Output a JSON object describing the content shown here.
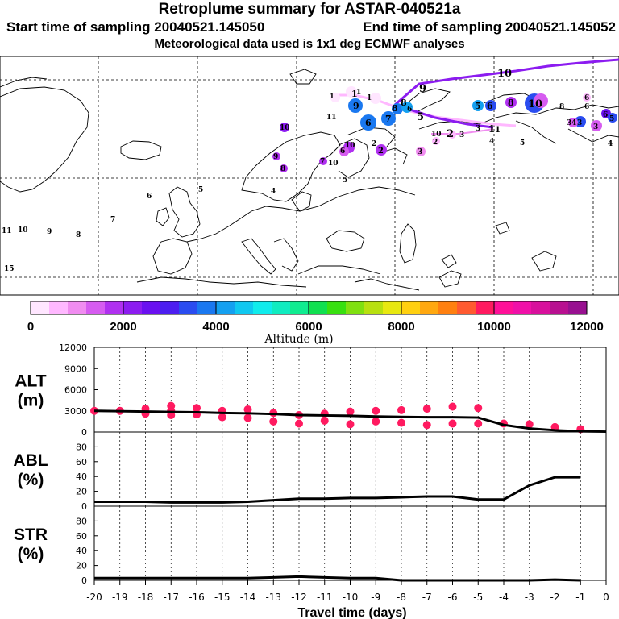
{
  "header": {
    "title": "Retroplume summary for ASTAR-040521a",
    "start_time": "Start time of sampling 20040521.145050",
    "end_time": "End time of sampling 20040521.145052",
    "met_data": "Meteorological data used is 1x1 deg ECMWF analyses"
  },
  "colorbar": {
    "label": "Altitude (m)",
    "tick_labels": [
      "0",
      "2000",
      "4000",
      "6000",
      "8000",
      "10000",
      "12000"
    ],
    "range": [
      0,
      12000
    ],
    "colors": [
      "#ffe6ff",
      "#ffb8ff",
      "#f08cf0",
      "#d65cf0",
      "#b030f0",
      "#8c1cf0",
      "#6a10f0",
      "#4c1ef0",
      "#2a4cf0",
      "#1a78f0",
      "#14a0f0",
      "#10c8f0",
      "#10ecec",
      "#10ecc0",
      "#10ec90",
      "#10e050",
      "#38e010",
      "#80e010",
      "#b8e010",
      "#e8e810",
      "#ffd010",
      "#ffa810",
      "#ff8010",
      "#ff5a30",
      "#ff1a60",
      "#ff1098",
      "#f010a8",
      "#d8109c",
      "#b81090",
      "#981090"
    ]
  },
  "map": {
    "track_labels": [
      "1",
      "1",
      "1",
      "1",
      "9",
      "8",
      "6",
      "5",
      "8",
      "7",
      "5",
      "6",
      "9",
      "10",
      "6",
      "3",
      "4",
      "3",
      "5",
      "2",
      "2",
      "6",
      "10",
      "7",
      "9",
      "9",
      "2",
      "3",
      "2",
      "3",
      "8",
      "9",
      "10",
      "11",
      "1",
      "5",
      "10",
      "6",
      "4",
      "4",
      "10",
      "7",
      "8",
      "6",
      "5",
      "11",
      "10",
      "9",
      "8",
      "15",
      "7",
      "6",
      "5",
      "4",
      "3",
      "2"
    ],
    "point_labels": [
      "1",
      "1",
      "9",
      "6",
      "7",
      "8",
      "5",
      "9",
      "10",
      "6",
      "8",
      "6",
      "3",
      "4",
      "5",
      "2",
      "2",
      "2",
      "3",
      "2",
      "6",
      "10",
      "7",
      "9",
      "9",
      "10",
      "11",
      "6",
      "5",
      "4",
      "7",
      "6",
      "11",
      "10",
      "9",
      "8",
      "15"
    ]
  },
  "chart_data": [
    {
      "type": "scatter",
      "name": "ALT",
      "ylabel": "ALT\n(m)",
      "ylabel_lines": [
        "ALT",
        "(m)"
      ],
      "ylim": [
        0,
        12000
      ],
      "yticks": [
        0,
        3000,
        6000,
        9000,
        12000
      ],
      "xlim": [
        -20,
        0
      ],
      "median_line": {
        "x": [
          -20,
          -19,
          -18,
          -17,
          -16,
          -15,
          -14,
          -13,
          -12,
          -11,
          -10,
          -9,
          -8,
          -7,
          -6,
          -5,
          -4,
          -3,
          -2,
          -1,
          0
        ],
        "y": [
          3000,
          2950,
          2900,
          2850,
          2800,
          2700,
          2650,
          2550,
          2400,
          2350,
          2300,
          2200,
          2150,
          2100,
          2100,
          2050,
          1000,
          500,
          250,
          100,
          50
        ]
      },
      "points": [
        {
          "x": -20,
          "y": 3000
        },
        {
          "x": -19,
          "y": 3000
        },
        {
          "x": -18,
          "y": 3300
        },
        {
          "x": -18,
          "y": 2600
        },
        {
          "x": -17,
          "y": 3700
        },
        {
          "x": -17,
          "y": 3000
        },
        {
          "x": -17,
          "y": 2400
        },
        {
          "x": -16,
          "y": 3400
        },
        {
          "x": -16,
          "y": 2500
        },
        {
          "x": -15,
          "y": 3000
        },
        {
          "x": -15,
          "y": 2100
        },
        {
          "x": -14,
          "y": 3200
        },
        {
          "x": -14,
          "y": 2000
        },
        {
          "x": -13,
          "y": 2700
        },
        {
          "x": -13,
          "y": 1500
        },
        {
          "x": -12,
          "y": 2400
        },
        {
          "x": -12,
          "y": 1200
        },
        {
          "x": -11,
          "y": 2600
        },
        {
          "x": -11,
          "y": 1600
        },
        {
          "x": -10,
          "y": 2900
        },
        {
          "x": -10,
          "y": 1100
        },
        {
          "x": -9,
          "y": 3000
        },
        {
          "x": -9,
          "y": 1500
        },
        {
          "x": -8,
          "y": 3100
        },
        {
          "x": -8,
          "y": 1300
        },
        {
          "x": -7,
          "y": 3300
        },
        {
          "x": -7,
          "y": 1000
        },
        {
          "x": -6,
          "y": 3600
        },
        {
          "x": -6,
          "y": 1200
        },
        {
          "x": -5,
          "y": 3400
        },
        {
          "x": -5,
          "y": 1200
        },
        {
          "x": -4,
          "y": 1200
        },
        {
          "x": -3,
          "y": 1100
        },
        {
          "x": -2,
          "y": 700
        },
        {
          "x": -1,
          "y": 400
        }
      ]
    },
    {
      "type": "line",
      "name": "ABL",
      "ylabel_lines": [
        "ABL",
        "(%)"
      ],
      "ylim": [
        0,
        100
      ],
      "yticks": [
        0,
        20,
        40,
        60,
        80
      ],
      "xlim": [
        -20,
        0
      ],
      "x": [
        -20,
        -19,
        -18,
        -17,
        -16,
        -15,
        -14,
        -13,
        -12,
        -11,
        -10,
        -9,
        -8,
        -7,
        -6,
        -5,
        -4,
        -3,
        -2,
        -1
      ],
      "values": [
        6,
        6,
        6,
        5,
        5,
        5,
        6,
        8,
        10,
        10,
        11,
        11,
        12,
        13,
        13,
        9,
        9,
        28,
        39,
        39
      ]
    },
    {
      "type": "line",
      "name": "STR",
      "ylabel_lines": [
        "STR",
        "(%)"
      ],
      "ylim": [
        0,
        100
      ],
      "yticks": [
        0,
        20,
        40,
        60,
        80
      ],
      "xlim": [
        -20,
        0
      ],
      "x": [
        -20,
        -19,
        -18,
        -17,
        -16,
        -15,
        -14,
        -13,
        -12,
        -11,
        -10,
        -9,
        -8,
        -7,
        -6,
        -5,
        -4,
        -3,
        -2,
        -1
      ],
      "values": [
        3,
        3,
        3,
        3,
        3,
        3,
        3,
        4,
        5,
        4,
        3,
        3,
        0,
        0,
        0,
        0,
        0,
        0,
        1,
        0
      ]
    }
  ],
  "xaxis": {
    "label": "Travel time (days)",
    "tick_labels": [
      "-20",
      "-19",
      "-18",
      "-17",
      "-16",
      "-15",
      "-14",
      "-13",
      "-12",
      "-11",
      "-10",
      "-9",
      "-8",
      "-7",
      "-6",
      "-5",
      "-4",
      "-3",
      "-2",
      "-1",
      "0"
    ]
  }
}
